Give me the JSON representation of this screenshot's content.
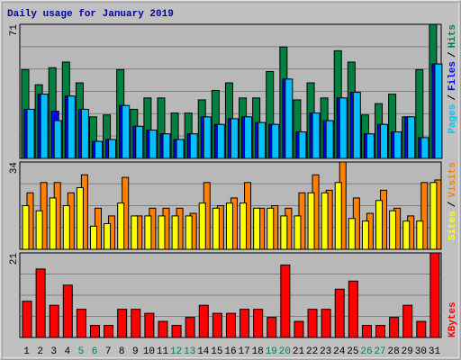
{
  "chart_data": [
    {
      "type": "bar",
      "title": "Daily usage for January 2019",
      "legend_separator": "/",
      "ylim": [
        0,
        71
      ],
      "yticks": [
        71
      ],
      "series": [
        {
          "name": "Pages",
          "color": "#00c0ff",
          "values": [
            26,
            34,
            20,
            33,
            26,
            9,
            10,
            28,
            17,
            15,
            13,
            10,
            13,
            22,
            18,
            21,
            22,
            19,
            18,
            42,
            14,
            24,
            20,
            32,
            35,
            13,
            18,
            14,
            22,
            11,
            50
          ]
        },
        {
          "name": "Files",
          "color": "#0000ff",
          "values": [
            26,
            34,
            25,
            33,
            26,
            9,
            10,
            28,
            17,
            15,
            13,
            10,
            13,
            22,
            18,
            21,
            22,
            19,
            18,
            42,
            14,
            24,
            20,
            32,
            35,
            13,
            18,
            14,
            22,
            11,
            50
          ]
        },
        {
          "name": "Hits",
          "color": "#008040",
          "values": [
            47,
            39,
            48,
            51,
            40,
            22,
            23,
            47,
            26,
            32,
            32,
            24,
            24,
            31,
            36,
            40,
            32,
            32,
            46,
            59,
            31,
            40,
            32,
            57,
            51,
            23,
            29,
            34,
            22,
            47,
            71
          ]
        }
      ]
    },
    {
      "type": "bar",
      "legend_separator": "/",
      "ylim": [
        0,
        34
      ],
      "yticks": [
        34
      ],
      "series": [
        {
          "name": "Sites",
          "color": "#ffff00",
          "values": [
            17,
            15,
            20,
            17,
            24,
            9,
            10,
            18,
            13,
            13,
            13,
            13,
            13,
            18,
            16,
            18,
            18,
            16,
            16,
            13,
            13,
            22,
            22,
            26,
            12,
            11,
            19,
            15,
            11,
            11,
            26
          ]
        },
        {
          "name": "Visits",
          "color": "#ff8000",
          "values": [
            22,
            26,
            26,
            22,
            29,
            16,
            13,
            28,
            13,
            16,
            16,
            16,
            14,
            26,
            17,
            20,
            26,
            16,
            17,
            16,
            22,
            29,
            23,
            34,
            20,
            14,
            23,
            16,
            13,
            26,
            27
          ]
        }
      ]
    },
    {
      "type": "bar",
      "ylim": [
        0,
        21
      ],
      "yticks": [
        21
      ],
      "categories": [
        "1",
        "2",
        "3",
        "4",
        "5",
        "6",
        "7",
        "8",
        "9",
        "10",
        "11",
        "12",
        "13",
        "14",
        "15",
        "16",
        "17",
        "18",
        "19",
        "20",
        "21",
        "22",
        "23",
        "24",
        "25",
        "26",
        "27",
        "28",
        "29",
        "30",
        "31"
      ],
      "category_colors": [
        "#000000",
        "#000000",
        "#000000",
        "#000000",
        "#00805c",
        "#00805c",
        "#000000",
        "#000000",
        "#000000",
        "#000000",
        "#000000",
        "#00805c",
        "#00805c",
        "#000000",
        "#000000",
        "#000000",
        "#000000",
        "#000000",
        "#00805c",
        "#00805c",
        "#000000",
        "#000000",
        "#000000",
        "#000000",
        "#000000",
        "#00805c",
        "#00805c",
        "#000000",
        "#000000",
        "#000000",
        "#000000"
      ],
      "series": [
        {
          "name": "KBytes",
          "color": "#ff0000",
          "values": [
            9,
            17,
            8,
            13,
            7,
            3,
            3,
            7,
            7,
            6,
            4,
            3,
            5,
            8,
            6,
            6,
            7,
            7,
            5,
            18,
            4,
            7,
            7,
            12,
            14,
            3,
            3,
            5,
            8,
            4,
            21
          ]
        }
      ]
    }
  ]
}
